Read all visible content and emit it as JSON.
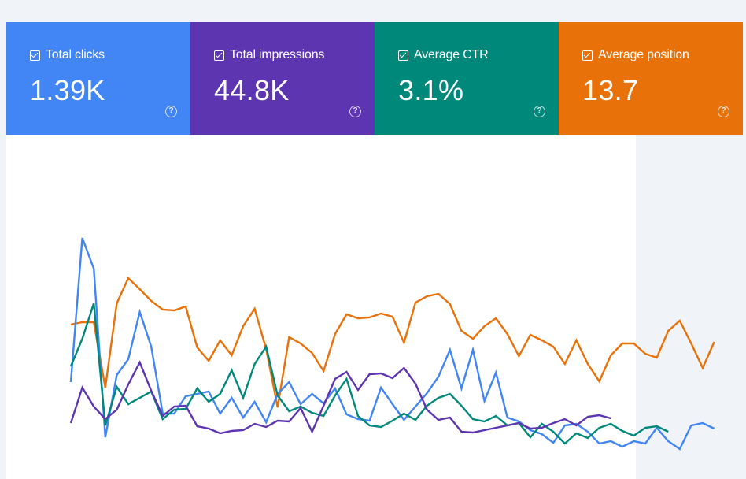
{
  "metrics": [
    {
      "label": "Total clicks",
      "value": "1.39K",
      "color": "#4285f4",
      "icon": "help-icon"
    },
    {
      "label": "Total impressions",
      "value": "44.8K",
      "color": "#5e35b1",
      "icon": "help-icon"
    },
    {
      "label": "Average CTR",
      "value": "3.1%",
      "color": "#00897b",
      "icon": "help-icon"
    },
    {
      "label": "Average position",
      "value": "13.7",
      "color": "#e8710a",
      "icon": "help-icon"
    }
  ],
  "chart_data": {
    "type": "line",
    "series": [
      {
        "color": "#e8710a",
        "values": [
          412,
          409,
          409,
          492,
          385,
          353,
          367,
          382,
          393,
          394,
          389,
          441,
          458,
          432,
          451,
          414,
          392,
          443,
          517,
          428,
          436,
          448,
          471,
          424,
          399,
          404,
          403,
          398,
          402,
          435,
          384,
          376,
          373,
          386,
          420,
          430,
          414,
          404,
          424,
          452,
          425,
          432,
          440,
          462,
          432,
          462,
          484,
          451,
          436,
          436,
          449,
          454,
          420,
          407,
          436,
          467,
          434
        ]
      },
      {
        "color": "#4285f4",
        "values": [
          485,
          302,
          341,
          555,
          476,
          456,
          396,
          440,
          525,
          525,
          503,
          500,
          497,
          525,
          505,
          530,
          510,
          536,
          500,
          485,
          513,
          500,
          512,
          493,
          526,
          532,
          534,
          492,
          513,
          533,
          516,
          499,
          478,
          444,
          493,
          444,
          509,
          473,
          530,
          535,
          546,
          551,
          562,
          540,
          538,
          548,
          563,
          560,
          567,
          560,
          563,
          543,
          560,
          570,
          540,
          537,
          544
        ]
      },
      {
        "color": "#00897b",
        "values": [
          465,
          430,
          385,
          540,
          491,
          513,
          505,
          497,
          532,
          520,
          519,
          493,
          510,
          500,
          470,
          505,
          462,
          440,
          502,
          522,
          516,
          524,
          528,
          502,
          481,
          528,
          540,
          542,
          534,
          525,
          533,
          515,
          505,
          500,
          515,
          532,
          535,
          528,
          540,
          537,
          555,
          538,
          548,
          563,
          550,
          556,
          543,
          538,
          547,
          553,
          543,
          541,
          548
        ]
      },
      {
        "color": "#5e35b1",
        "values": [
          537,
          492,
          516,
          532,
          520,
          488,
          460,
          496,
          528,
          516,
          515,
          541,
          544,
          550,
          547,
          546,
          538,
          542,
          534,
          535,
          518,
          548,
          515,
          481,
          472,
          495,
          475,
          474,
          480,
          467,
          487,
          520,
          533,
          530,
          548,
          549,
          546,
          543,
          540,
          537,
          544,
          543,
          537,
          532,
          540,
          529,
          527,
          531
        ]
      }
    ]
  }
}
